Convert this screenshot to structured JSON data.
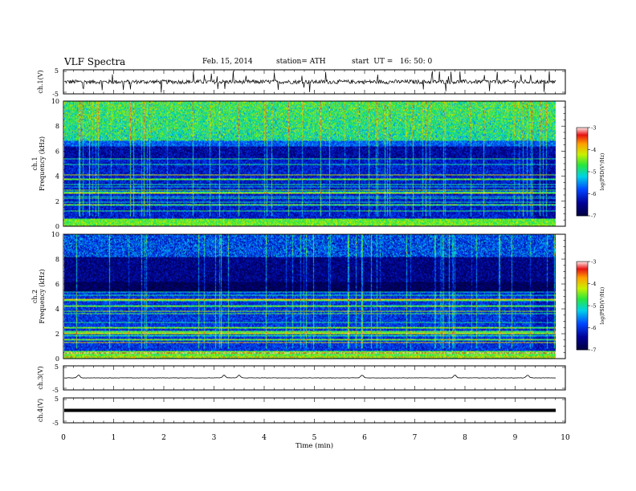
{
  "header": {
    "title": "VLF Spectra",
    "date": "Feb. 15, 2014",
    "station": "station= ATH",
    "start": "start  UT =   16: 50: 0"
  },
  "chart_data": [
    {
      "type": "line",
      "ylabel": "ch.1(V)",
      "xlim": [
        0,
        10
      ],
      "ylim": [
        -5,
        5
      ],
      "yticks": [
        "5",
        "-5"
      ],
      "description_values": {
        "baseline": 0,
        "noise_amplitude": 1.2,
        "spike_amplitude": 4.5
      }
    },
    {
      "type": "heatmap",
      "ylabel": "Frequency (kHz)",
      "channel_label": "ch.1",
      "xlim": [
        0,
        9.8
      ],
      "ylim": [
        0,
        10
      ],
      "yticks": [
        "0",
        "2",
        "4",
        "6",
        "8",
        "10"
      ],
      "colorbar": {
        "label": "log(PSD(V²/Hz)",
        "ticks": [
          "-3",
          "-4",
          "-5",
          "-6",
          "-7"
        ],
        "range": [
          -7,
          -3
        ]
      }
    },
    {
      "type": "heatmap",
      "ylabel": "Frequency (kHz)",
      "channel_label": "ch.2",
      "xlim": [
        0,
        9.8
      ],
      "ylim": [
        0,
        10
      ],
      "yticks": [
        "0",
        "2",
        "4",
        "6",
        "8",
        "10"
      ],
      "colorbar": {
        "label": "log(PSD(V²/Hz)",
        "ticks": [
          "-3",
          "-4",
          "-5",
          "-6",
          "-7"
        ],
        "range": [
          -7,
          -3
        ]
      }
    },
    {
      "type": "line",
      "ylabel": "ch.3(V)",
      "xlim": [
        0,
        10
      ],
      "ylim": [
        -5,
        5
      ],
      "yticks": [
        "5",
        "-5"
      ],
      "bumps_min": [
        0.3,
        3.2,
        3.5,
        5.95,
        7.8,
        9.25
      ]
    },
    {
      "type": "line",
      "ylabel": "ch.4(V)",
      "xlim": [
        0,
        10
      ],
      "ylim": [
        -5,
        5
      ],
      "yticks": [
        "5",
        "-5"
      ],
      "baseline": 0
    }
  ],
  "xaxis": {
    "label": "Time  (min)",
    "ticks": [
      "0",
      "1",
      "2",
      "3",
      "4",
      "5",
      "6",
      "7",
      "8",
      "9",
      "10"
    ]
  },
  "colors": {
    "low": "#00006e",
    "mid": "#0066ff",
    "cyan": "#00e0e0",
    "green": "#40e040",
    "yellow": "#e8e800",
    "orange": "#ff9000",
    "red": "#e00000"
  }
}
